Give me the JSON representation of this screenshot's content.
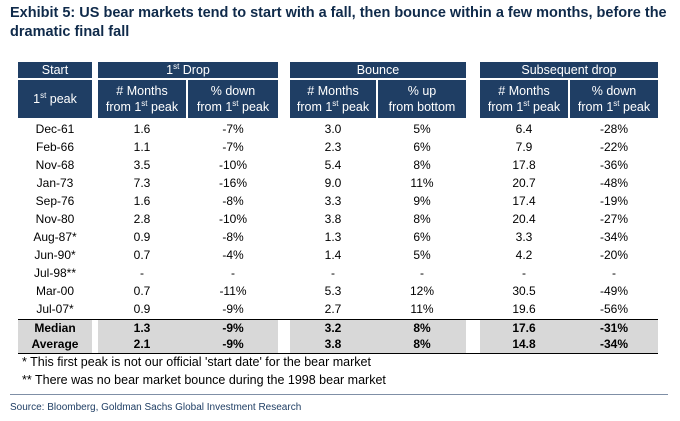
{
  "title": "Exhibit 5: US bear markets tend to start with a fall, then bounce within a few months, before the dramatic final fall",
  "headers": {
    "start": "Start",
    "peak_main": "1",
    "peak_sup": "st",
    "peak_rest": " peak",
    "group1_main": "1",
    "group1_sup": "st",
    "group1_rest": " Drop",
    "group2": "Bounce",
    "group3": "Subsequent drop",
    "months_top": "# Months",
    "from_peak_pre": "from 1",
    "from_peak_sup": "st",
    "from_peak_post": " peak",
    "pct_down_top": "% down",
    "pct_up_top": "% up",
    "from_bottom": "from bottom"
  },
  "rows": [
    {
      "start": "Dec-61",
      "d_months": "1.6",
      "d_pct": "-7%",
      "b_months": "3.0",
      "b_pct": "5%",
      "s_months": "6.4",
      "s_pct": "-28%"
    },
    {
      "start": "Feb-66",
      "d_months": "1.1",
      "d_pct": "-7%",
      "b_months": "2.3",
      "b_pct": "6%",
      "s_months": "7.9",
      "s_pct": "-22%"
    },
    {
      "start": "Nov-68",
      "d_months": "3.5",
      "d_pct": "-10%",
      "b_months": "5.4",
      "b_pct": "8%",
      "s_months": "17.8",
      "s_pct": "-36%"
    },
    {
      "start": "Jan-73",
      "d_months": "7.3",
      "d_pct": "-16%",
      "b_months": "9.0",
      "b_pct": "11%",
      "s_months": "20.7",
      "s_pct": "-48%"
    },
    {
      "start": "Sep-76",
      "d_months": "1.6",
      "d_pct": "-8%",
      "b_months": "3.3",
      "b_pct": "9%",
      "s_months": "17.4",
      "s_pct": "-19%"
    },
    {
      "start": "Nov-80",
      "d_months": "2.8",
      "d_pct": "-10%",
      "b_months": "3.8",
      "b_pct": "8%",
      "s_months": "20.4",
      "s_pct": "-27%"
    },
    {
      "start": "Aug-87*",
      "d_months": "0.9",
      "d_pct": "-8%",
      "b_months": "1.3",
      "b_pct": "6%",
      "s_months": "3.3",
      "s_pct": "-34%"
    },
    {
      "start": "Jun-90*",
      "d_months": "0.7",
      "d_pct": "-4%",
      "b_months": "1.4",
      "b_pct": "5%",
      "s_months": "4.2",
      "s_pct": "-20%"
    },
    {
      "start": "Jul-98**",
      "d_months": "-",
      "d_pct": "-",
      "b_months": "-",
      "b_pct": "-",
      "s_months": "-",
      "s_pct": "-"
    },
    {
      "start": "Mar-00",
      "d_months": "0.7",
      "d_pct": "-11%",
      "b_months": "5.3",
      "b_pct": "12%",
      "s_months": "30.5",
      "s_pct": "-49%"
    },
    {
      "start": "Jul-07*",
      "d_months": "0.9",
      "d_pct": "-9%",
      "b_months": "2.7",
      "b_pct": "11%",
      "s_months": "19.6",
      "s_pct": "-56%"
    }
  ],
  "summary": [
    {
      "start": "Median",
      "d_months": "1.3",
      "d_pct": "-9%",
      "b_months": "3.2",
      "b_pct": "8%",
      "s_months": "17.6",
      "s_pct": "-31%"
    },
    {
      "start": "Average",
      "d_months": "2.1",
      "d_pct": "-9%",
      "b_months": "3.8",
      "b_pct": "8%",
      "s_months": "14.8",
      "s_pct": "-34%"
    }
  ],
  "notes": [
    "* This first peak is not our official 'start date' for the bear market",
    "** There was no bear market bounce during the 1998 bear market"
  ],
  "source": "Source: Bloomberg, Goldman Sachs Global Investment Research"
}
